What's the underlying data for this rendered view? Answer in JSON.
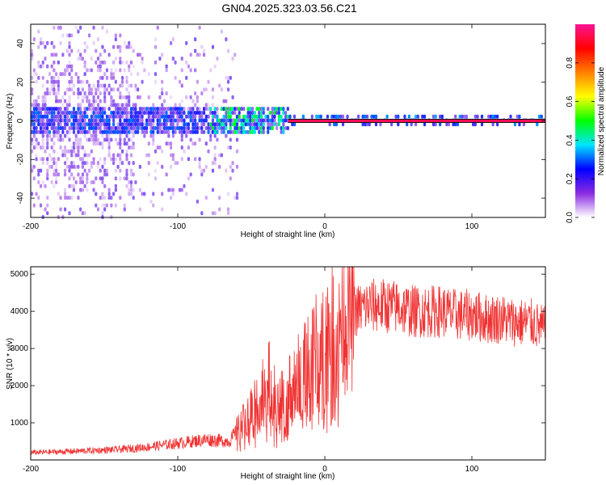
{
  "title": "GN04.2025.323.03.56.C21",
  "chart_data": [
    {
      "type": "heatmap",
      "name": "spectrogram",
      "xlabel": "Height of straight line (km)",
      "ylabel": "Frequency (Hz)",
      "xlim": [
        -200,
        150
      ],
      "ylim": [
        -50,
        50
      ],
      "xticks": [
        -200,
        -100,
        0,
        100
      ],
      "yticks": [
        -40,
        -20,
        0,
        20,
        40
      ],
      "colorbar": {
        "label": "Normalized spectral amplitude",
        "range": [
          0,
          1
        ],
        "ticks": [
          "0.0",
          "0.2",
          "0.4",
          "0.6",
          "0.8"
        ],
        "colors": [
          "#ffffff",
          "#8a2be2",
          "#0000ff",
          "#00e5ff",
          "#00ff00",
          "#ffff00",
          "#ff8000",
          "#ff0000",
          "#ff1493"
        ]
      },
      "carrier_line": {
        "frequency": 0,
        "x_start": -25,
        "x_end": 150,
        "amplitude": 0.95
      }
    },
    {
      "type": "line",
      "name": "snr",
      "xlabel": "Height of straight line (km)",
      "ylabel": "SNR (10 * v/v)",
      "xlim": [
        -200,
        150
      ],
      "ylim": [
        0,
        5200
      ],
      "xticks": [
        -200,
        -100,
        0,
        100
      ],
      "yticks": [
        1000,
        2000,
        3000,
        4000,
        5000
      ],
      "color": "#f03232",
      "series": [
        {
          "name": "SNR",
          "x": [
            -200,
            -180,
            -160,
            -140,
            -120,
            -100,
            -80,
            -65,
            -55,
            -45,
            -38,
            -32,
            -25,
            -18,
            -10,
            -5,
            0,
            5,
            10,
            20,
            30,
            40,
            50,
            60,
            70,
            80,
            90,
            100,
            110,
            120,
            130,
            140,
            150
          ],
          "y": [
            200,
            220,
            250,
            280,
            350,
            450,
            550,
            500,
            1000,
            1700,
            2100,
            1400,
            1800,
            2200,
            2600,
            3000,
            3300,
            3600,
            3800,
            4000,
            4150,
            4150,
            4100,
            4000,
            4000,
            4000,
            3900,
            3900,
            3800,
            3800,
            3700,
            3700,
            3500
          ]
        }
      ]
    }
  ]
}
